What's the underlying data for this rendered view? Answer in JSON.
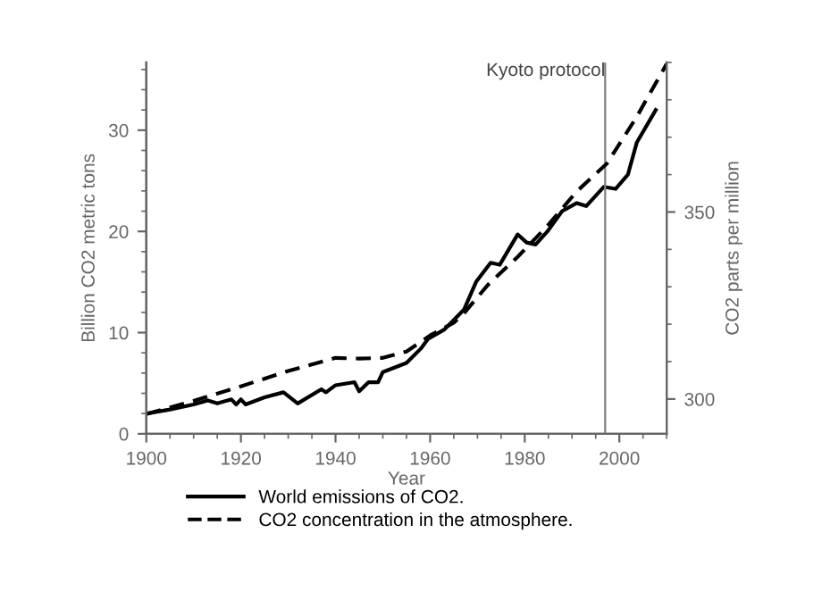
{
  "chart_data": {
    "type": "line",
    "xlabel": "Year",
    "ylabel": "Billion CO2 metric tons",
    "y2label": "CO2 parts per million",
    "xlim": [
      1900,
      2010
    ],
    "xticks": [
      1900,
      1920,
      1940,
      1960,
      1980,
      2000
    ],
    "ylim": [
      0,
      36.7
    ],
    "yticks": [
      0,
      10,
      20,
      30
    ],
    "y2lim": [
      290.7,
      390
    ],
    "y2ticks": [
      300,
      350
    ],
    "grid": false,
    "legend": "bottom",
    "marker": "none",
    "ref_lines": [
      {
        "axis": "x",
        "value": 1997,
        "label": "Kyoto protocol",
        "color": "#808080"
      }
    ],
    "series": [
      {
        "name": "World emissions of CO2.",
        "color": "#000000",
        "line_style": "solid",
        "x": [
          1900,
          1905,
          1910,
          1913,
          1915,
          1918,
          1919,
          1920,
          1921,
          1925,
          1929,
          1932,
          1937,
          1938,
          1940,
          1944,
          1945,
          1947,
          1949,
          1950,
          1955,
          1958,
          1959.6,
          1963,
          1967.2,
          1969.7,
          1972.8,
          1974.7,
          1976.6,
          1978.5,
          1980.4,
          1982.3,
          1984.8,
          1987.9,
          1991,
          1993,
          1996.7,
          1999.2,
          2001.8,
          2003.7,
          2007.7
        ],
        "values": [
          2.0,
          2.4,
          2.9,
          3.3,
          3.0,
          3.4,
          2.9,
          3.4,
          2.9,
          3.6,
          4.1,
          3.0,
          4.4,
          4.1,
          4.8,
          5.1,
          4.2,
          5.1,
          5.1,
          6.1,
          7.0,
          8.4,
          9.4,
          10.3,
          12.3,
          15.0,
          16.9,
          16.7,
          18.2,
          19.7,
          18.9,
          18.7,
          20.0,
          22.0,
          22.8,
          22.5,
          24.4,
          24.2,
          25.6,
          28.8,
          32.0
        ]
      },
      {
        "name": "CO2 concentration in the atmosphere.",
        "color": "#000000",
        "line_style": "dashed",
        "axis": "y2",
        "x": [
          1900,
          1910,
          1920,
          1930,
          1940,
          1945,
          1950,
          1955,
          1960,
          1965,
          1967.2,
          1972.2,
          1978.5,
          1984.8,
          1991,
          1997.4,
          2003.7,
          2010
        ],
        "values": [
          296,
          299.5,
          303.4,
          307.5,
          311,
          310.8,
          311,
          312.7,
          317,
          320.4,
          323,
          330.5,
          338,
          346.3,
          355.5,
          363,
          375.5,
          389.6
        ]
      }
    ]
  }
}
